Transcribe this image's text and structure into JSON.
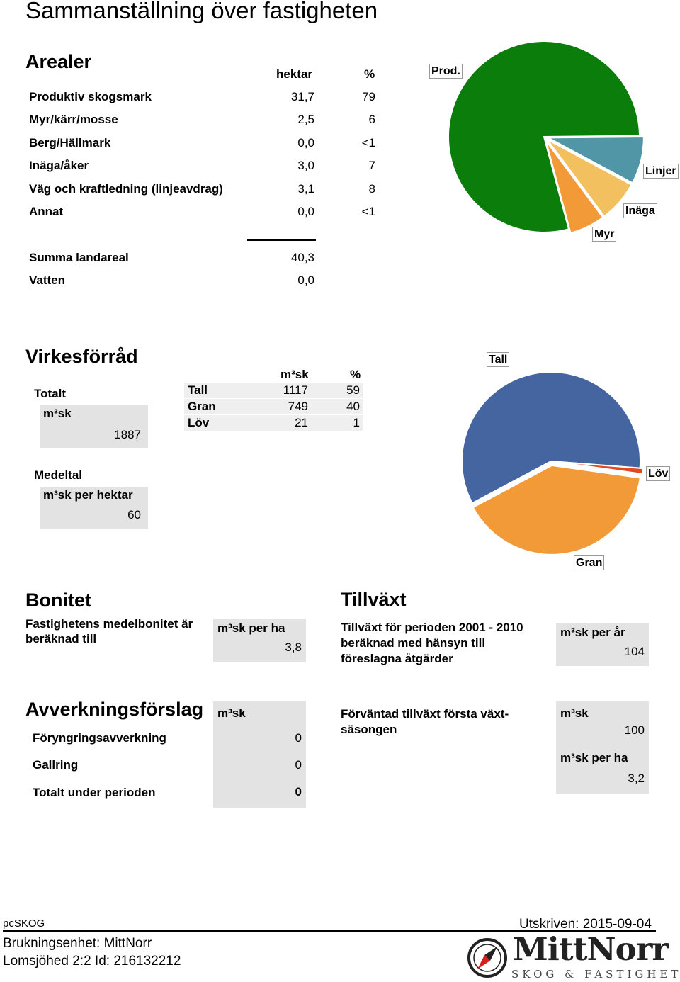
{
  "page_title": "Sammanställning över fastigheten",
  "arealer": {
    "heading": "Arealer",
    "col_hektar": "hektar",
    "col_pct": "%",
    "rows": [
      {
        "label": "Produktiv skogsmark",
        "hektar": "31,7",
        "pct": "79"
      },
      {
        "label": "Myr/kärr/mosse",
        "hektar": "2,5",
        "pct": "6"
      },
      {
        "label": "Berg/Hällmark",
        "hektar": "0,0",
        "pct": "<1"
      },
      {
        "label": "Inäga/åker",
        "hektar": "3,0",
        "pct": "7"
      },
      {
        "label": "Väg och kraftledning (linjeavdrag)",
        "hektar": "3,1",
        "pct": "8"
      },
      {
        "label": "Annat",
        "hektar": "0,0",
        "pct": "<1"
      }
    ],
    "sum_label": "Summa landareal",
    "sum_value": "40,3",
    "water_label": "Vatten",
    "water_value": "0,0"
  },
  "chart_data": [
    {
      "type": "pie",
      "slices": [
        {
          "label": "Prod.",
          "value": 79,
          "color": "#0a7d0a"
        },
        {
          "label": "Linjer",
          "value": 8,
          "color": "#5096a6"
        },
        {
          "label": "Inäga",
          "value": 7,
          "color": "#f2c05e"
        },
        {
          "label": "Myr",
          "value": 6,
          "color": "#f29a38"
        }
      ]
    },
    {
      "type": "pie",
      "slices": [
        {
          "label": "Tall",
          "value": 59,
          "color": "#4565a1"
        },
        {
          "label": "Löv",
          "value": 1,
          "color": "#e04a1e"
        },
        {
          "label": "Gran",
          "value": 40,
          "color": "#f29a38"
        }
      ]
    }
  ],
  "virke": {
    "heading": "Virkesförråd",
    "totalt_label": "Totalt",
    "totalt_unit": "m³sk",
    "totalt_value": "1887",
    "col_m3sk": "m³sk",
    "col_pct": "%",
    "rows": [
      {
        "label": "Tall",
        "m3sk": "1117",
        "pct": "59"
      },
      {
        "label": "Gran",
        "m3sk": "749",
        "pct": "40"
      },
      {
        "label": "Löv",
        "m3sk": "21",
        "pct": "1"
      }
    ],
    "medeltal_label": "Medeltal",
    "medeltal_unit": "m³sk per hektar",
    "medeltal_value": "60"
  },
  "bonitet": {
    "heading": "Bonitet",
    "text": "Fastighetens medelbonitet är beräknad till",
    "unit": "m³sk per ha",
    "value": "3,8"
  },
  "tillvaxt": {
    "heading": "Tillväxt",
    "text": "Tillväxt för perioden 2001 - 2010 beräknad med hänsyn till föreslagna åtgärder",
    "unit": "m³sk per år",
    "value": "104"
  },
  "avverkning": {
    "heading": "Avverkningsförslag",
    "unit": "m³sk",
    "rows": [
      {
        "label": "Föryngringsavverkning",
        "value": "0"
      },
      {
        "label": "Gallring",
        "value": "0"
      },
      {
        "label": "Totalt under perioden",
        "value": "0"
      }
    ]
  },
  "forvantad": {
    "text": "Förväntad tillväxt första växt-säsongen",
    "unit1": "m³sk",
    "value1": "100",
    "unit2": "m³sk per ha",
    "value2": "3,2"
  },
  "footer": {
    "app": "pcSKOG",
    "printed": "Utskriven: 2015-09-04",
    "unit": "Brukningsenhet: MittNorr",
    "property": "Lomsjöhed 2:2 Id: 216132212",
    "logo_name": "MittNorr",
    "logo_tagline": "SKOG & FASTIGHET"
  }
}
